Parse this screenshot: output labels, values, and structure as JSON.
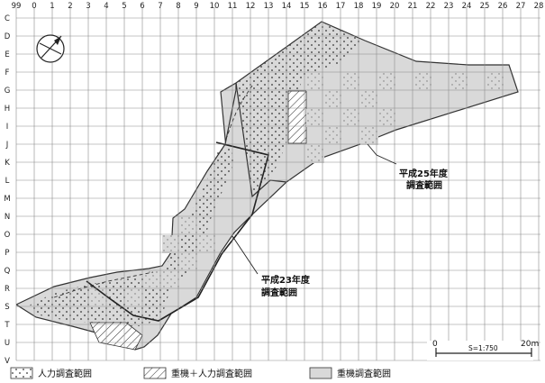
{
  "grid": {
    "columns": [
      "99",
      "0",
      "1",
      "2",
      "3",
      "4",
      "5",
      "6",
      "7",
      "8",
      "9",
      "10",
      "11",
      "12",
      "13",
      "14",
      "15",
      "16",
      "17",
      "18",
      "19",
      "20",
      "21",
      "22",
      "23",
      "24",
      "25",
      "26",
      "27",
      "28"
    ],
    "rows": [
      "C",
      "D",
      "E",
      "F",
      "G",
      "H",
      "I",
      "J",
      "K",
      "L",
      "M",
      "N",
      "O",
      "P",
      "Q",
      "R",
      "S",
      "T",
      "U",
      "V"
    ]
  },
  "annotations": {
    "fy25": {
      "line1": "平成25年度",
      "line2": "調査範囲"
    },
    "fy23": {
      "line1": "平成23年度",
      "line2": "調査範囲"
    }
  },
  "scale": {
    "start": "0",
    "end": "20m",
    "ratio": "S=1:750"
  },
  "legend": {
    "manual": "人力調査範囲",
    "combined": "重機＋人力調査範囲",
    "machine": "重機調査範囲"
  },
  "colors": {
    "grid": "#8a8a8a",
    "fill": "#d9d9d9",
    "outline": "#333333"
  }
}
